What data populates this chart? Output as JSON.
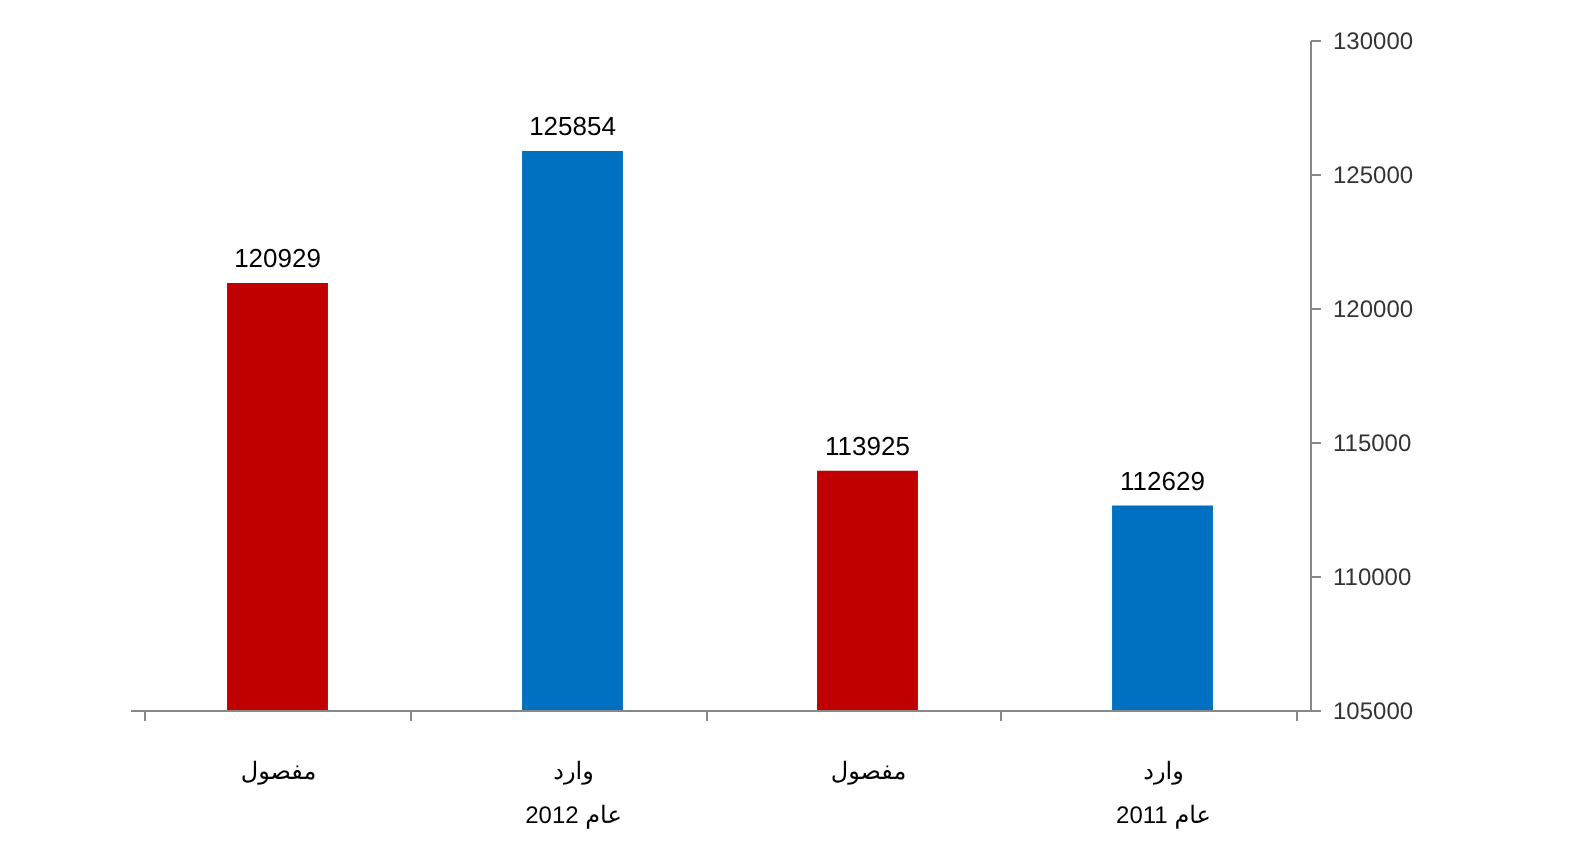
{
  "chart_data": {
    "type": "bar",
    "categories": [
      "مفصول",
      "وارد\nعام 2012",
      "مفصول",
      "وارد\nعام 2011"
    ],
    "values": [
      120929,
      125854,
      113925,
      112629
    ],
    "colors": [
      "#c00000",
      "#0070c0",
      "#c00000",
      "#0070c0"
    ],
    "ylim": [
      105000,
      130000
    ],
    "yticks": [
      105000,
      110000,
      115000,
      120000,
      125000,
      130000
    ],
    "data_labels": true
  }
}
